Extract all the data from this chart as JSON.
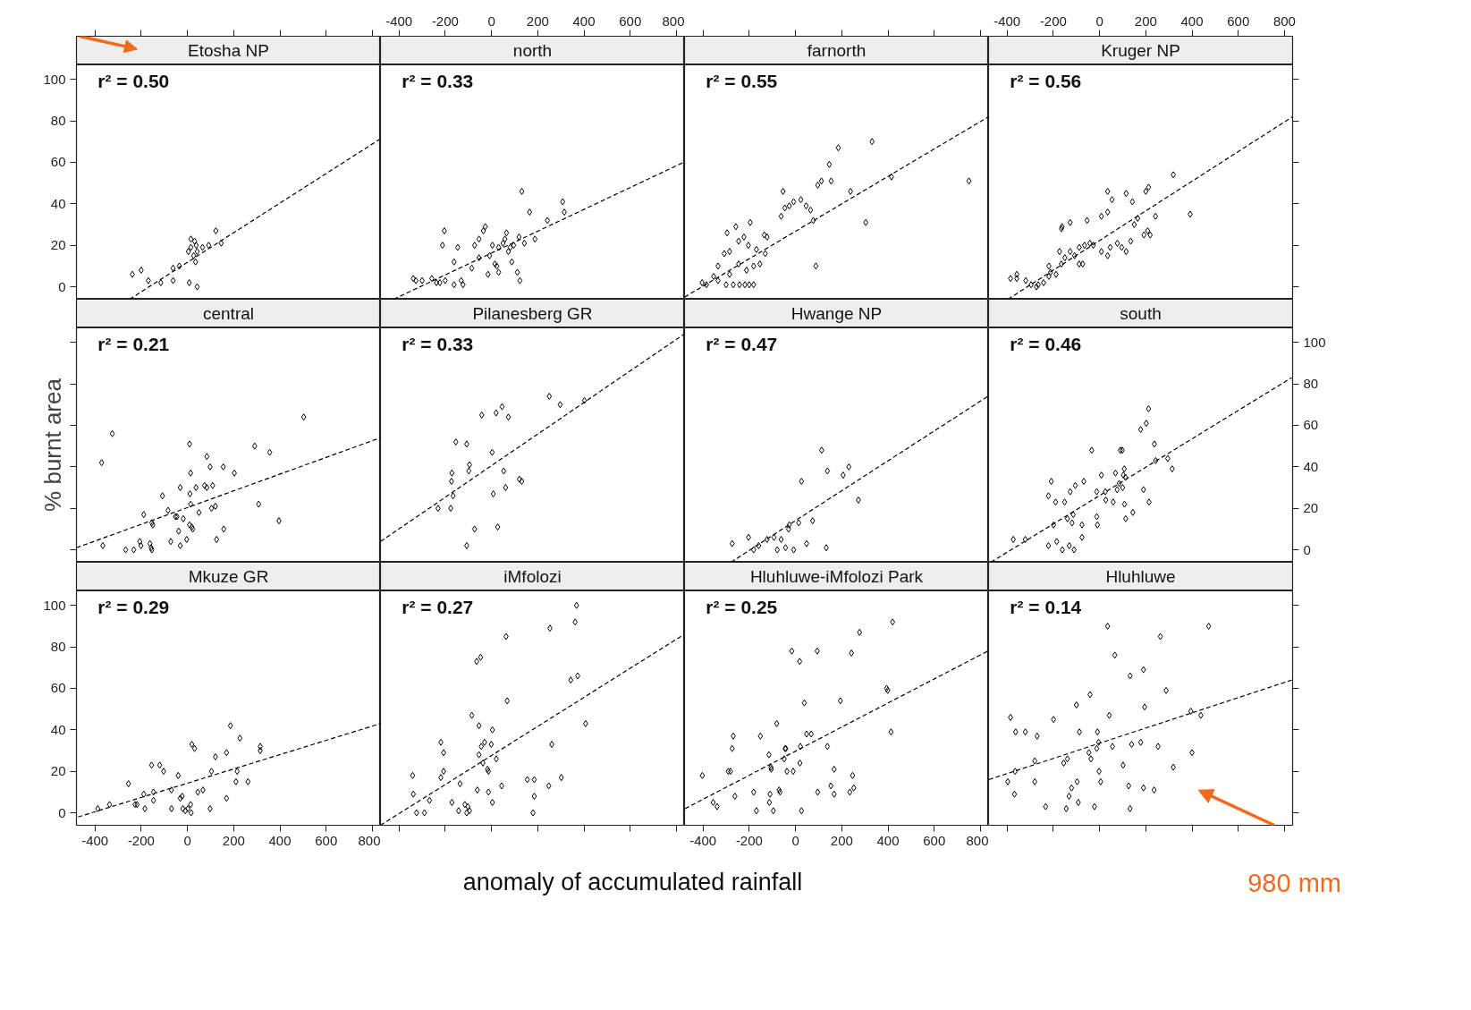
{
  "chart_data": [
    {
      "type": "scatter",
      "title": "Etosha NP",
      "annotations": [
        "r² = 0.50"
      ],
      "xlim": [
        -480,
        835
      ],
      "ylim": [
        -6,
        107
      ],
      "xticks": [
        -400,
        -200,
        0,
        200,
        400,
        600,
        800
      ],
      "yticks": [
        0,
        20,
        40,
        60,
        80,
        100
      ],
      "tick_labels": "y",
      "series": [
        {
          "marker": "diamond",
          "color": "#000000",
          "x": [
            -238,
            -200,
            -169,
            -115,
            -62,
            -62,
            -35,
            4,
            15,
            27,
            35,
            42,
            15,
            31,
            38,
            65,
            92,
            123,
            146,
            8,
            42
          ],
          "values": [
            6,
            8,
            3,
            2,
            3,
            9,
            10,
            17,
            19,
            15,
            12,
            17,
            23,
            22,
            20,
            19,
            20,
            27,
            21,
            2,
            0
          ]
        },
        {
          "type": "line",
          "line_style": "dashed",
          "color": "#000000",
          "x": [
            -250,
            830
          ],
          "values": [
            -6,
            71
          ]
        }
      ]
    },
    {
      "type": "scatter",
      "title": "north",
      "annotations": [
        "r² = 0.33"
      ],
      "xlim": [
        -480,
        835
      ],
      "ylim": [
        -6,
        107
      ],
      "xticks": [
        -400,
        -200,
        0,
        200,
        400,
        600,
        800
      ],
      "tick_labels": "x",
      "series": [
        {
          "marker": "diamond",
          "color": "#000000",
          "x": [
            -338,
            -327,
            -300,
            -258,
            -238,
            -223,
            -200,
            -162,
            -123,
            -212,
            -204,
            -162,
            -146,
            -131,
            -85,
            -73,
            -54,
            -54,
            -35,
            -27,
            -15,
            -8,
            4,
            15,
            23,
            31,
            31,
            50,
            58,
            65,
            73,
            81,
            88,
            96,
            112,
            119,
            131,
            142,
            165,
            188,
            242,
            308,
            315,
            123
          ],
          "values": [
            4,
            3,
            3,
            4,
            2,
            2,
            3,
            1,
            1,
            20,
            27,
            12,
            19,
            3,
            9,
            20,
            23,
            14,
            27,
            29,
            6,
            15,
            20,
            11,
            10,
            7,
            19,
            21,
            23,
            26,
            17,
            19,
            12,
            20,
            7,
            24,
            46,
            21,
            36,
            23,
            32,
            41,
            36,
            3
          ]
        },
        {
          "type": "line",
          "line_style": "dashed",
          "color": "#000000",
          "x": [
            -423,
            831
          ],
          "values": [
            -6,
            60
          ]
        }
      ]
    },
    {
      "type": "scatter",
      "title": "farnorth",
      "annotations": [
        "r² = 0.55"
      ],
      "xlim": [
        -480,
        835
      ],
      "ylim": [
        -6,
        107
      ],
      "xticks": [
        -400,
        -200,
        0,
        200,
        400,
        600,
        800
      ],
      "tick_labels": false,
      "series": [
        {
          "marker": "diamond",
          "color": "#000000",
          "x": [
            -404,
            -385,
            -354,
            -335,
            -300,
            -269,
            -242,
            -219,
            -200,
            -181,
            -335,
            -285,
            -246,
            -212,
            -181,
            -308,
            -285,
            -246,
            -223,
            -204,
            -169,
            -154,
            -131,
            -123,
            -296,
            -258,
            -196,
            -135,
            -62,
            -46,
            -27,
            -8,
            -54,
            23,
            46,
            65,
            88,
            77,
            96,
            112,
            146,
            185,
            154,
            238,
            331,
            304,
            415,
            750
          ],
          "values": [
            2,
            1,
            5,
            3,
            1,
            1,
            1,
            1,
            1,
            1,
            10,
            6,
            11,
            8,
            10,
            16,
            17,
            22,
            24,
            20,
            18,
            11,
            16,
            24,
            26,
            29,
            31,
            25,
            34,
            38,
            39,
            41,
            46,
            42,
            39,
            37,
            10,
            32,
            49,
            51,
            59,
            67,
            51,
            46,
            70,
            31,
            53,
            51
          ]
        },
        {
          "type": "line",
          "line_style": "dashed",
          "color": "#000000",
          "x": [
            -480,
            835
          ],
          "values": [
            -5,
            82
          ]
        }
      ]
    },
    {
      "type": "scatter",
      "title": "Kruger NP",
      "annotations": [
        "r² = 0.56"
      ],
      "xlim": [
        -480,
        835
      ],
      "ylim": [
        -6,
        107
      ],
      "xticks": [
        -400,
        -200,
        0,
        200,
        400,
        600,
        800
      ],
      "yticks": [
        0,
        20,
        40,
        60,
        80,
        100
      ],
      "tick_labels": "x",
      "series": [
        {
          "marker": "diamond",
          "color": "#000000",
          "x": [
            -385,
            -358,
            -358,
            -319,
            -296,
            -273,
            -265,
            -242,
            -219,
            -212,
            -188,
            -165,
            -150,
            -219,
            -173,
            -127,
            -108,
            -88,
            -88,
            -73,
            -65,
            -42,
            -27,
            8,
            35,
            46,
            77,
            96,
            115,
            135,
            150,
            165,
            192,
            208,
            219,
            242,
            -165,
            -162,
            -127,
            -54,
            8,
            35,
            35,
            54,
            115,
            142,
            200,
            212,
            319,
            392
          ],
          "values": [
            4,
            6,
            4,
            3,
            1,
            0,
            1,
            2,
            5,
            7,
            6,
            11,
            14,
            10,
            17,
            17,
            15,
            19,
            11,
            11,
            20,
            21,
            20,
            17,
            15,
            19,
            21,
            19,
            17,
            22,
            30,
            33,
            25,
            27,
            25,
            34,
            28,
            29,
            31,
            32,
            34,
            36,
            46,
            42,
            45,
            41,
            46,
            48,
            54,
            35
          ]
        },
        {
          "type": "line",
          "line_style": "dashed",
          "color": "#000000",
          "x": [
            -396,
            835
          ],
          "values": [
            -6,
            82
          ]
        }
      ]
    },
    {
      "type": "scatter",
      "title": "central",
      "ylabel": "% burnt area",
      "annotations": [
        "r² = 0.21"
      ],
      "xlim": [
        -480,
        835
      ],
      "ylim": [
        -6,
        107
      ],
      "yticks": [
        0,
        20,
        40,
        60,
        80,
        100
      ],
      "tick_labels": false,
      "series": [
        {
          "marker": "diamond",
          "color": "#000000",
          "x": [
            -371,
            -325,
            -366,
            -267,
            -232,
            -206,
            -201,
            -162,
            -157,
            -154,
            -189,
            -154,
            -150,
            -108,
            -84,
            -72,
            -52,
            -45,
            -38,
            -31,
            -31,
            -18,
            -3,
            9,
            14,
            11,
            14,
            9,
            19,
            23,
            37,
            50,
            74,
            84,
            84,
            98,
            104,
            109,
            121,
            126,
            155,
            157,
            203,
            291,
            308,
            356,
            396,
            503
          ],
          "values": [
            42,
            56,
            2,
            0,
            0,
            4,
            2,
            3,
            1,
            0,
            17,
            13,
            12,
            26,
            19,
            4,
            16,
            16,
            9,
            30,
            2,
            15,
            5,
            51,
            37,
            27,
            22,
            12,
            11,
            10,
            30,
            18,
            31,
            45,
            30,
            40,
            20,
            31,
            21,
            5,
            40,
            10,
            37,
            50,
            22,
            47,
            14,
            64
          ]
        },
        {
          "type": "line",
          "line_style": "dashed",
          "color": "#000000",
          "x": [
            -480,
            834
          ],
          "values": [
            1,
            54
          ]
        }
      ]
    },
    {
      "type": "scatter",
      "title": "Pilanesberg GR",
      "annotations": [
        "r² = 0.33"
      ],
      "xlim": [
        -480,
        835
      ],
      "ylim": [
        -6,
        107
      ],
      "tick_labels": false,
      "series": [
        {
          "marker": "diamond",
          "color": "#000000",
          "x": [
            -231,
            -176,
            -166,
            -173,
            -171,
            -154,
            -107,
            -98,
            -95,
            -73,
            -107,
            -42,
            3,
            8,
            20,
            46,
            73,
            27,
            53,
            61,
            121,
            131,
            250,
            297,
            402
          ],
          "values": [
            20,
            20,
            26,
            33,
            37,
            52,
            51,
            38,
            41,
            10,
            2,
            65,
            47,
            27,
            66,
            69,
            64,
            11,
            38,
            30,
            34,
            33,
            74,
            70,
            72
          ]
        },
        {
          "type": "line",
          "line_style": "dashed",
          "color": "#000000",
          "x": [
            -480,
            833
          ],
          "values": [
            4,
            104
          ]
        }
      ]
    },
    {
      "type": "scatter",
      "title": "Hwange NP",
      "annotations": [
        "r² = 0.47"
      ],
      "xlim": [
        -480,
        835
      ],
      "ylim": [
        -6,
        107
      ],
      "tick_labels": false,
      "series": [
        {
          "marker": "diamond",
          "color": "#000000",
          "x": [
            -274,
            -203,
            -181,
            -159,
            -123,
            -93,
            -79,
            -62,
            -43,
            -30,
            -27,
            -8,
            14,
            26,
            48,
            74,
            113,
            133,
            138,
            206,
            231,
            272
          ],
          "values": [
            3,
            6,
            0,
            2,
            5,
            6,
            0,
            5,
            1,
            10,
            12,
            0,
            13,
            33,
            3,
            14,
            48,
            1,
            38,
            36,
            40,
            24
          ]
        },
        {
          "type": "line",
          "line_style": "dashed",
          "color": "#000000",
          "x": [
            -279,
            832
          ],
          "values": [
            -6,
            74
          ]
        }
      ]
    },
    {
      "type": "scatter",
      "title": "south",
      "annotations": [
        "r² = 0.46"
      ],
      "xlim": [
        -480,
        835
      ],
      "ylim": [
        -6,
        107
      ],
      "yticks": [
        0,
        20,
        40,
        60,
        80,
        100
      ],
      "tick_labels": "y",
      "series": [
        {
          "marker": "diamond",
          "color": "#000000",
          "x": [
            -373,
            -321,
            -221,
            -185,
            -161,
            -131,
            -110,
            -199,
            -139,
            -119,
            -114,
            -76,
            -76,
            -221,
            -190,
            -151,
            -209,
            -127,
            -105,
            -68,
            -34,
            -12,
            -12,
            -9,
            8,
            25,
            27,
            59,
            69,
            76,
            85,
            90,
            98,
            100,
            103,
            107,
            112,
            108,
            113,
            144,
            178,
            190,
            202,
            212,
            214,
            237,
            243,
            295,
            314
          ],
          "values": [
            5,
            5,
            2,
            4,
            0,
            2,
            0,
            12,
            15,
            13,
            17,
            12,
            6,
            26,
            23,
            23,
            33,
            28,
            31,
            33,
            48,
            28,
            16,
            12,
            36,
            28,
            24,
            23,
            37,
            29,
            32,
            48,
            48,
            30,
            36,
            39,
            35,
            22,
            15,
            18,
            58,
            29,
            61,
            68,
            23,
            51,
            43,
            44,
            39
          ]
        },
        {
          "type": "line",
          "line_style": "dashed",
          "color": "#000000",
          "x": [
            -470,
            831
          ],
          "values": [
            -6,
            83
          ]
        }
      ]
    },
    {
      "type": "scatter",
      "title": "Mkuze GR",
      "annotations": [
        "r² = 0.29"
      ],
      "xlim": [
        -480,
        835
      ],
      "ylim": [
        -6,
        107
      ],
      "xticks": [
        -400,
        -200,
        0,
        200,
        400,
        600,
        800
      ],
      "yticks": [
        0,
        20,
        40,
        60,
        80,
        100
      ],
      "series": [
        {
          "marker": "diamond",
          "color": "#000000",
          "x": [
            -388,
            -337,
            -255,
            -227,
            -218,
            -189,
            -184,
            -155,
            -147,
            -147,
            -120,
            -103,
            -69,
            -69,
            -40,
            -31,
            -23,
            -20,
            -9,
            2,
            14,
            16,
            19,
            31,
            45,
            67,
            98,
            104,
            121,
            169,
            169,
            186,
            210,
            215,
            227,
            262,
            315,
            315
          ],
          "values": [
            2,
            4,
            14,
            4,
            4,
            9,
            2,
            23,
            10,
            6,
            23,
            20,
            11,
            2,
            18,
            7,
            8,
            2,
            1,
            2,
            4,
            0,
            33,
            31,
            10,
            11,
            2,
            20,
            27,
            29,
            7,
            42,
            15,
            20,
            36,
            15,
            32,
            30
          ]
        },
        {
          "type": "line",
          "line_style": "dashed",
          "color": "#000000",
          "x": [
            -473,
            834
          ],
          "values": [
            -2,
            43
          ]
        }
      ]
    },
    {
      "type": "scatter",
      "title": "iMfolozi",
      "xlabel": "anomaly of accumulated rainfall",
      "annotations": [
        "r² = 0.27"
      ],
      "xlim": [
        -480,
        835
      ],
      "ylim": [
        -6,
        107
      ],
      "xticks": [
        -400,
        -200,
        0,
        200,
        400,
        600,
        800
      ],
      "tick_labels": false,
      "series": [
        {
          "marker": "diamond",
          "color": "#000000",
          "x": [
            -341,
            -338,
            -324,
            -290,
            -268,
            -219,
            -207,
            -219,
            -207,
            -171,
            -142,
            -136,
            -115,
            -107,
            -102,
            -95,
            -85,
            -64,
            -47,
            -61,
            -54,
            -54,
            -44,
            -37,
            -30,
            -17,
            -13,
            -13,
            -1,
            4,
            4,
            21,
            44,
            63,
            68,
            155,
            185,
            185,
            180,
            248,
            253,
            261,
            302,
            343,
            362,
            368,
            373,
            407
          ],
          "values": [
            18,
            9,
            0,
            0,
            6,
            34,
            29,
            17,
            20,
            5,
            1,
            14,
            4,
            0,
            3,
            1,
            47,
            73,
            75,
            11,
            42,
            28,
            32,
            24,
            34,
            21,
            20,
            10,
            33,
            40,
            5,
            26,
            13,
            85,
            54,
            16,
            16,
            8,
            0,
            13,
            89,
            33,
            17,
            64,
            92,
            100,
            66,
            43
          ]
        },
        {
          "type": "line",
          "line_style": "dashed",
          "color": "#000000",
          "x": [
            -480,
            833
          ],
          "values": [
            -6,
            86
          ]
        }
      ]
    },
    {
      "type": "scatter",
      "title": "Hluhluwe-iMfolozi Park",
      "annotations": [
        "r² = 0.25"
      ],
      "xlim": [
        -480,
        835
      ],
      "ylim": [
        -6,
        107
      ],
      "xticks": [
        -400,
        -200,
        0,
        200,
        400,
        600,
        800
      ],
      "tick_labels": "x",
      "series": [
        {
          "marker": "diamond",
          "color": "#000000",
          "x": [
            -403,
            -356,
            -339,
            -291,
            -281,
            -274,
            -269,
            -262,
            -181,
            -169,
            -152,
            -115,
            -113,
            -110,
            -106,
            -105,
            -81,
            -71,
            -67,
            -96,
            -49,
            -45,
            -42,
            -37,
            -16,
            -10,
            18,
            19,
            21,
            26,
            38,
            48,
            68,
            94,
            96,
            138,
            153,
            167,
            167,
            194,
            235,
            242,
            247,
            252,
            277,
            394,
            399,
            413,
            420
          ],
          "values": [
            18,
            5,
            3,
            20,
            20,
            31,
            37,
            8,
            10,
            1,
            37,
            28,
            5,
            9,
            22,
            21,
            43,
            11,
            10,
            1,
            26,
            31,
            31,
            20,
            78,
            20,
            73,
            24,
            32,
            1,
            53,
            38,
            38,
            78,
            10,
            32,
            13,
            21,
            9,
            54,
            10,
            77,
            18,
            12,
            87,
            60,
            59,
            39,
            92
          ]
        },
        {
          "type": "line",
          "line_style": "dashed",
          "color": "#000000",
          "x": [
            -478,
            832
          ],
          "values": [
            2,
            78
          ]
        }
      ]
    },
    {
      "type": "scatter",
      "title": "Hluhluwe",
      "annotations": [
        "r² = 0.14",
        "980 mm"
      ],
      "xlim": [
        -480,
        835
      ],
      "ylim": [
        -6,
        107
      ],
      "xticks": [
        -400,
        -200,
        0,
        200,
        400,
        600,
        800
      ],
      "yticks": [
        0,
        20,
        40,
        60,
        80,
        100
      ],
      "tick_labels": false,
      "series": [
        {
          "marker": "diamond",
          "color": "#000000",
          "x": [
            -397,
            -385,
            -368,
            -365,
            -363,
            -321,
            -280,
            -280,
            -270,
            -233,
            -199,
            -155,
            -139,
            -144,
            -132,
            -121,
            -97,
            -92,
            -100,
            -87,
            -41,
            -46,
            -37,
            -22,
            -12,
            -9,
            -4,
            -2,
            5,
            35,
            42,
            56,
            66,
            102,
            126,
            132,
            132,
            139,
            178,
            190,
            190,
            195,
            236,
            253,
            263,
            288,
            319,
            395,
            400,
            438,
            472
          ],
          "values": [
            15,
            46,
            9,
            20,
            39,
            39,
            25,
            15,
            37,
            3,
            45,
            24,
            26,
            2,
            8,
            12,
            15,
            5,
            52,
            39,
            57,
            29,
            26,
            3,
            31,
            39,
            34,
            20,
            15,
            90,
            47,
            32,
            76,
            23,
            13,
            2,
            66,
            33,
            34,
            69,
            12,
            51,
            11,
            32,
            85,
            59,
            22,
            49,
            29,
            47,
            90
          ]
        },
        {
          "type": "line",
          "line_style": "dashed",
          "color": "#000000",
          "x": [
            -479,
            831
          ],
          "values": [
            16,
            64
          ]
        }
      ]
    }
  ]
}
